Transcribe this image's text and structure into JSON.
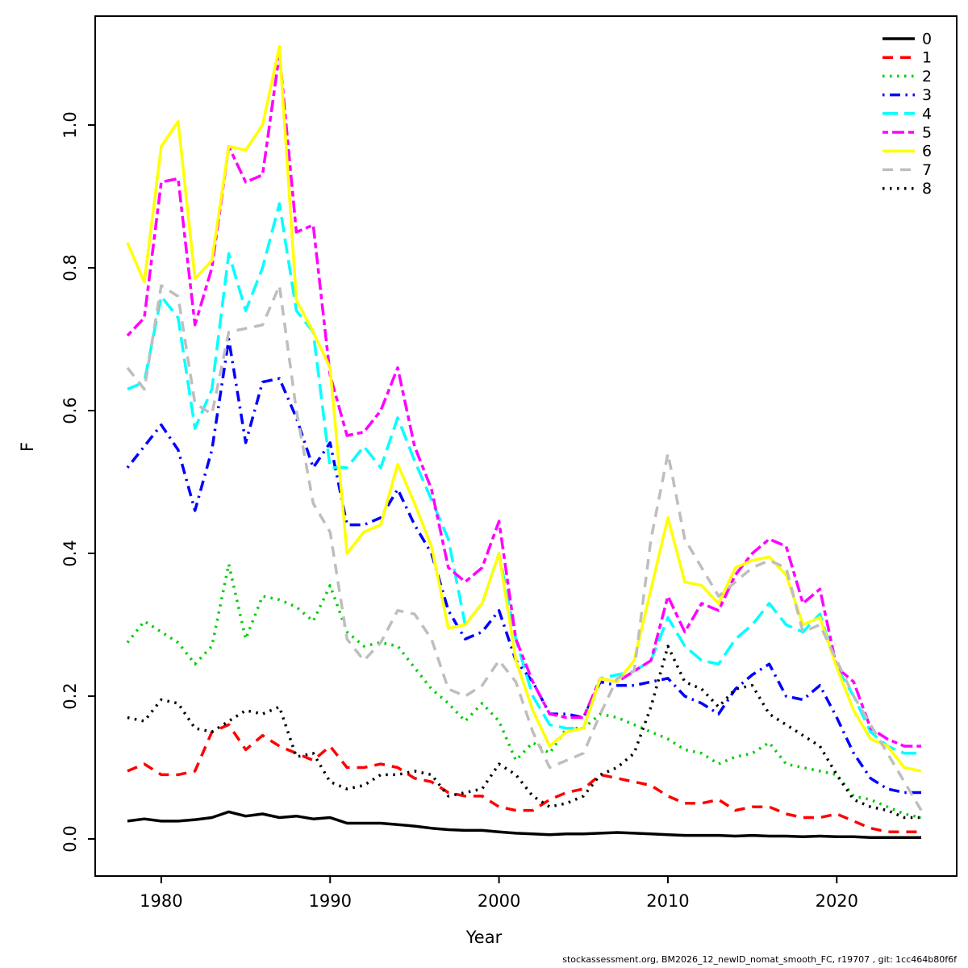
{
  "figure": {
    "xlabel": "Year",
    "ylabel": "F",
    "footer": "stockassessment.org, BM2026_12_newID_nomat_smooth_FC, r19707 , git: 1cc464b80f6f"
  },
  "chart_data": {
    "type": "line",
    "title": "",
    "xlabel": "Year",
    "ylabel": "F",
    "grid": false,
    "legend_position": "top-right",
    "xlim": [
      1978,
      2025
    ],
    "ylim": [
      0,
      1.12
    ],
    "x_ticks": [
      1980,
      1990,
      2000,
      2010,
      2020
    ],
    "y_ticks": [
      0.0,
      0.2,
      0.4,
      0.6,
      0.8,
      1.0
    ],
    "y_tick_labels": [
      "0.0",
      "0.2",
      "0.4",
      "0.6",
      "0.8",
      "1.0"
    ],
    "x": [
      1978,
      1979,
      1980,
      1981,
      1982,
      1983,
      1984,
      1985,
      1986,
      1987,
      1988,
      1989,
      1990,
      1991,
      1992,
      1993,
      1994,
      1995,
      1996,
      1997,
      1998,
      1999,
      2000,
      2001,
      2002,
      2003,
      2004,
      2005,
      2006,
      2007,
      2008,
      2009,
      2010,
      2011,
      2012,
      2013,
      2014,
      2015,
      2016,
      2017,
      2018,
      2019,
      2020,
      2021,
      2022,
      2023,
      2024,
      2025
    ],
    "series": [
      {
        "name": "0",
        "color": "#000000",
        "lty": "solid",
        "values": [
          0.025,
          0.028,
          0.025,
          0.025,
          0.027,
          0.03,
          0.038,
          0.032,
          0.035,
          0.03,
          0.032,
          0.028,
          0.03,
          0.022,
          0.022,
          0.022,
          0.02,
          0.018,
          0.015,
          0.013,
          0.012,
          0.012,
          0.01,
          0.008,
          0.007,
          0.006,
          0.007,
          0.007,
          0.008,
          0.009,
          0.008,
          0.007,
          0.006,
          0.005,
          0.005,
          0.005,
          0.004,
          0.005,
          0.004,
          0.004,
          0.003,
          0.004,
          0.003,
          0.003,
          0.002,
          0.002,
          0.002,
          0.002
        ]
      },
      {
        "name": "1",
        "color": "#FF0000",
        "lty": "dashed",
        "values": [
          0.095,
          0.105,
          0.09,
          0.09,
          0.095,
          0.15,
          0.16,
          0.125,
          0.145,
          0.13,
          0.12,
          0.11,
          0.13,
          0.1,
          0.1,
          0.105,
          0.1,
          0.085,
          0.08,
          0.065,
          0.06,
          0.06,
          0.045,
          0.04,
          0.04,
          0.055,
          0.065,
          0.07,
          0.09,
          0.085,
          0.08,
          0.075,
          0.06,
          0.05,
          0.05,
          0.055,
          0.04,
          0.045,
          0.045,
          0.035,
          0.03,
          0.03,
          0.035,
          0.025,
          0.015,
          0.01,
          0.01,
          0.01
        ]
      },
      {
        "name": "2",
        "color": "#00CD00",
        "lty": "dotted",
        "values": [
          0.275,
          0.305,
          0.29,
          0.275,
          0.245,
          0.27,
          0.385,
          0.28,
          0.34,
          0.335,
          0.325,
          0.305,
          0.355,
          0.29,
          0.27,
          0.275,
          0.27,
          0.24,
          0.21,
          0.19,
          0.165,
          0.19,
          0.165,
          0.11,
          0.135,
          0.12,
          0.155,
          0.155,
          0.175,
          0.17,
          0.16,
          0.15,
          0.14,
          0.125,
          0.12,
          0.105,
          0.115,
          0.12,
          0.135,
          0.105,
          0.1,
          0.095,
          0.09,
          0.06,
          0.055,
          0.045,
          0.035,
          0.03
        ]
      },
      {
        "name": "3",
        "color": "#0000FF",
        "lty": "dotdash",
        "values": [
          0.52,
          0.55,
          0.58,
          0.545,
          0.46,
          0.545,
          0.7,
          0.555,
          0.64,
          0.645,
          0.59,
          0.52,
          0.555,
          0.44,
          0.44,
          0.45,
          0.49,
          0.44,
          0.4,
          0.32,
          0.28,
          0.29,
          0.32,
          0.25,
          0.22,
          0.175,
          0.175,
          0.17,
          0.22,
          0.215,
          0.215,
          0.22,
          0.225,
          0.2,
          0.19,
          0.175,
          0.21,
          0.23,
          0.245,
          0.2,
          0.195,
          0.215,
          0.17,
          0.12,
          0.085,
          0.07,
          0.065,
          0.065
        ]
      },
      {
        "name": "4",
        "color": "#00FFFF",
        "lty": "longdash",
        "values": [
          0.63,
          0.64,
          0.76,
          0.73,
          0.575,
          0.63,
          0.82,
          0.74,
          0.8,
          0.89,
          0.74,
          0.71,
          0.52,
          0.52,
          0.55,
          0.52,
          0.59,
          0.53,
          0.475,
          0.42,
          0.3,
          0.33,
          0.4,
          0.28,
          0.2,
          0.16,
          0.155,
          0.155,
          0.225,
          0.23,
          0.235,
          0.25,
          0.31,
          0.27,
          0.25,
          0.245,
          0.28,
          0.3,
          0.33,
          0.3,
          0.29,
          0.315,
          0.24,
          0.2,
          0.15,
          0.13,
          0.12,
          0.12
        ]
      },
      {
        "name": "5",
        "color": "#FF00FF",
        "lty": "twodash",
        "values": [
          0.705,
          0.73,
          0.92,
          0.925,
          0.72,
          0.8,
          0.97,
          0.92,
          0.93,
          1.1,
          0.85,
          0.86,
          0.65,
          0.565,
          0.57,
          0.6,
          0.66,
          0.55,
          0.49,
          0.38,
          0.36,
          0.38,
          0.445,
          0.28,
          0.22,
          0.175,
          0.17,
          0.17,
          0.225,
          0.22,
          0.235,
          0.25,
          0.34,
          0.29,
          0.33,
          0.32,
          0.37,
          0.4,
          0.42,
          0.41,
          0.33,
          0.35,
          0.24,
          0.22,
          0.155,
          0.14,
          0.13,
          0.13
        ]
      },
      {
        "name": "6",
        "color": "#FFFF00",
        "lty": "solid",
        "values": [
          0.835,
          0.78,
          0.97,
          1.005,
          0.785,
          0.81,
          0.97,
          0.965,
          1.0,
          1.11,
          0.755,
          0.71,
          0.66,
          0.4,
          0.43,
          0.44,
          0.525,
          0.47,
          0.41,
          0.295,
          0.3,
          0.33,
          0.4,
          0.25,
          0.18,
          0.13,
          0.15,
          0.155,
          0.225,
          0.22,
          0.25,
          0.35,
          0.45,
          0.36,
          0.355,
          0.33,
          0.38,
          0.39,
          0.395,
          0.37,
          0.3,
          0.31,
          0.24,
          0.18,
          0.14,
          0.13,
          0.1,
          0.095
        ]
      },
      {
        "name": "7",
        "color": "#BEBEBE",
        "lty": "dashed",
        "values": [
          0.66,
          0.63,
          0.775,
          0.76,
          0.61,
          0.595,
          0.71,
          0.715,
          0.72,
          0.775,
          0.6,
          0.47,
          0.43,
          0.28,
          0.25,
          0.275,
          0.32,
          0.315,
          0.28,
          0.21,
          0.2,
          0.215,
          0.25,
          0.22,
          0.15,
          0.1,
          0.11,
          0.12,
          0.175,
          0.225,
          0.235,
          0.42,
          0.54,
          0.42,
          0.38,
          0.34,
          0.36,
          0.38,
          0.39,
          0.38,
          0.29,
          0.3,
          0.25,
          0.2,
          0.16,
          0.12,
          0.08,
          0.04
        ]
      },
      {
        "name": "8",
        "color": "#000000",
        "lty": "dotted",
        "values": [
          0.17,
          0.165,
          0.195,
          0.19,
          0.155,
          0.15,
          0.165,
          0.18,
          0.175,
          0.185,
          0.115,
          0.12,
          0.08,
          0.07,
          0.075,
          0.09,
          0.09,
          0.095,
          0.09,
          0.06,
          0.065,
          0.07,
          0.105,
          0.09,
          0.06,
          0.045,
          0.05,
          0.06,
          0.09,
          0.1,
          0.12,
          0.185,
          0.27,
          0.22,
          0.21,
          0.185,
          0.21,
          0.215,
          0.175,
          0.16,
          0.145,
          0.13,
          0.09,
          0.055,
          0.045,
          0.04,
          0.03,
          0.03
        ]
      }
    ]
  }
}
